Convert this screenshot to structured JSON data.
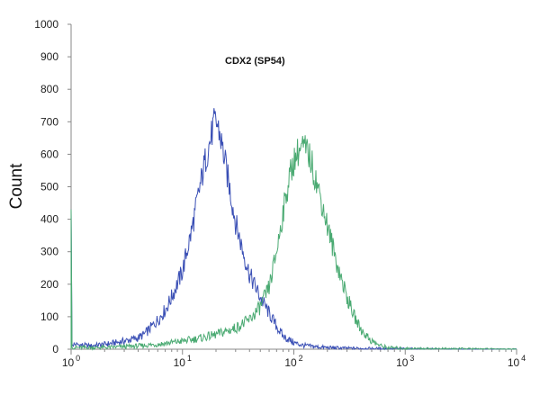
{
  "chart_data": {
    "type": "line",
    "title": "CDX2  (SP54)",
    "xlabel": "",
    "ylabel": "Count",
    "x_scale": "log",
    "xlim": [
      1,
      10000
    ],
    "ylim": [
      0,
      1000
    ],
    "yticks": [
      0,
      100,
      200,
      300,
      400,
      500,
      600,
      700,
      800,
      900,
      1000
    ],
    "xticks": [
      {
        "base": "10",
        "exp": "0",
        "value": 1
      },
      {
        "base": "10",
        "exp": "1",
        "value": 10
      },
      {
        "base": "10",
        "exp": "2",
        "value": 100
      },
      {
        "base": "10",
        "exp": "3",
        "value": 1000
      },
      {
        "base": "10",
        "exp": "4",
        "value": 10000
      }
    ],
    "grid": false,
    "series": [
      {
        "color": "#3a4fb5",
        "x": [
          1.0,
          1.05,
          1.5,
          2,
          2.5,
          3,
          3.5,
          4,
          4.5,
          5,
          6,
          7,
          8,
          10,
          12,
          14,
          16,
          18,
          19,
          20,
          21,
          22,
          24,
          27,
          30,
          35,
          40,
          50,
          60,
          70,
          80,
          100,
          120,
          150,
          200,
          300,
          500,
          1000,
          3000,
          10000
        ],
        "y": [
          430,
          15,
          10,
          15,
          20,
          25,
          30,
          35,
          45,
          60,
          90,
          120,
          160,
          240,
          360,
          480,
          580,
          650,
          690,
          700,
          680,
          650,
          580,
          480,
          390,
          300,
          230,
          160,
          110,
          70,
          40,
          20,
          12,
          8,
          5,
          3,
          2,
          1,
          0,
          0
        ]
      },
      {
        "color": "#4aaa72",
        "x": [
          1.0,
          1.05,
          2,
          4,
          6,
          10,
          15,
          20,
          30,
          40,
          50,
          60,
          70,
          80,
          90,
          100,
          110,
          120,
          130,
          140,
          150,
          170,
          200,
          250,
          300,
          350,
          400,
          500,
          600,
          700,
          1000,
          3000,
          10000
        ],
        "y": [
          430,
          5,
          5,
          10,
          15,
          25,
          35,
          45,
          65,
          90,
          130,
          190,
          300,
          420,
          520,
          580,
          610,
          620,
          610,
          590,
          550,
          480,
          380,
          250,
          160,
          100,
          60,
          25,
          10,
          5,
          2,
          1,
          0
        ]
      }
    ]
  }
}
